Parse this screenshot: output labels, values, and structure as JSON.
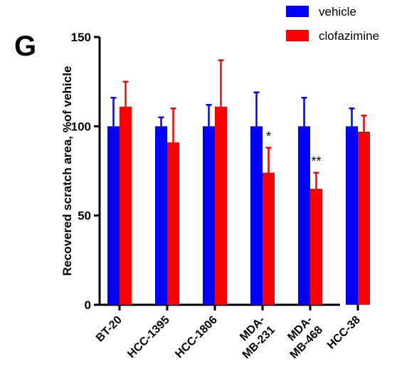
{
  "panel_label": "G",
  "chart_data": {
    "type": "bar",
    "title": "",
    "ylabel": "Recovered scratch area, %of vehicle",
    "xlabel": "",
    "ylim": [
      0,
      150
    ],
    "yticks": [
      0,
      50,
      100,
      150
    ],
    "categories": [
      "BT-20",
      "HCC-1395",
      "HCC-1806",
      "MDA-\nMB-231",
      "MDA-\nMB-468",
      "HCC-38"
    ],
    "series": [
      {
        "name": "vehicle",
        "color": "#0000ff",
        "values": [
          100,
          100,
          100,
          100,
          100,
          100
        ],
        "errors": [
          16,
          5,
          12,
          19,
          16,
          10
        ]
      },
      {
        "name": "clofazimine",
        "color": "#ff0000",
        "values": [
          111,
          91,
          111,
          74,
          65,
          97
        ],
        "errors": [
          14,
          19,
          26,
          14,
          9,
          9
        ]
      }
    ],
    "annotations": [
      {
        "category_index": 3,
        "series_index": 1,
        "text": "*"
      },
      {
        "category_index": 4,
        "series_index": 1,
        "text": "**"
      }
    ],
    "legend_position": "top-right",
    "grid": false
  }
}
